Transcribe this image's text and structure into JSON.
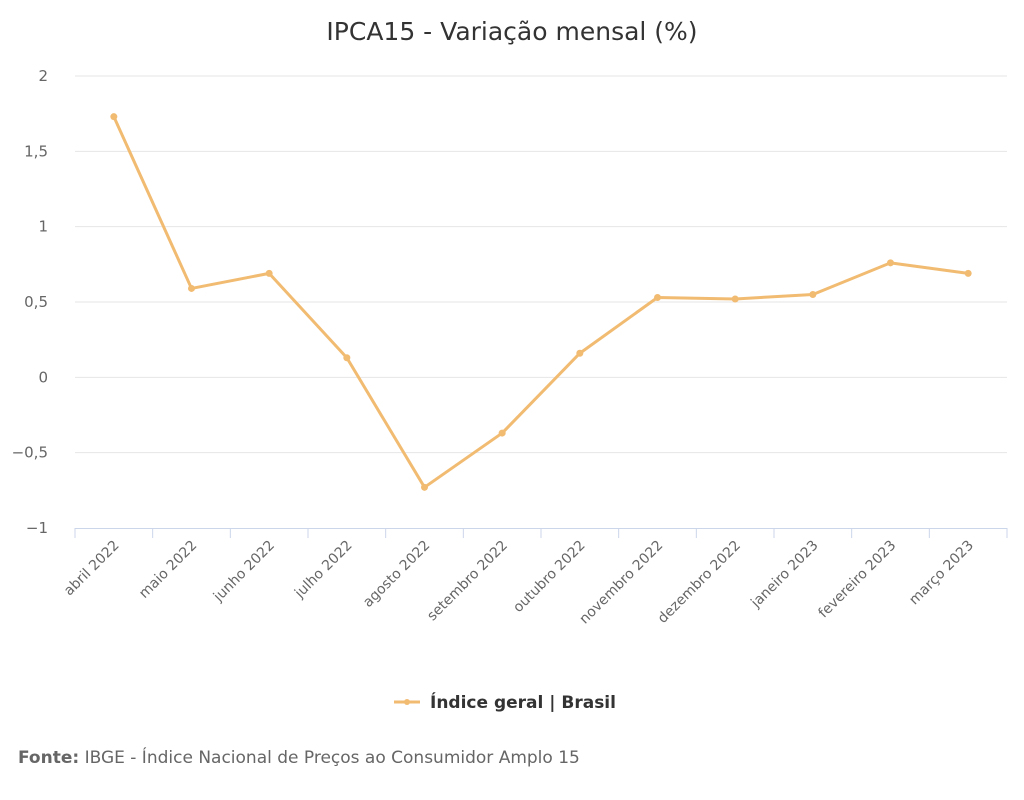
{
  "chart_data": {
    "type": "line",
    "title": "IPCA15 - Variação mensal (%)",
    "categories": [
      "abril 2022",
      "maio 2022",
      "junho 2022",
      "julho 2022",
      "agosto 2022",
      "setembro 2022",
      "outubro 2022",
      "novembro 2022",
      "dezembro 2022",
      "janeiro 2023",
      "fevereiro 2023",
      "março 2023"
    ],
    "series": [
      {
        "name": "Índice geral | Brasil",
        "color": "#f1bb72",
        "values": [
          1.73,
          0.59,
          0.69,
          0.13,
          -0.73,
          -0.37,
          0.16,
          0.53,
          0.52,
          0.55,
          0.76,
          0.69
        ]
      }
    ],
    "ylim": [
      -1,
      2
    ],
    "yticks": [
      -1,
      -0.5,
      0,
      0.5,
      1,
      1.5,
      2
    ],
    "ytick_labels": [
      "−1",
      "−0,5",
      "0",
      "0,5",
      "1",
      "1,5",
      "2"
    ],
    "grid": true,
    "legend": "bottom-center",
    "xlabel": "",
    "ylabel": ""
  },
  "source": {
    "label": "Fonte:",
    "text": " IBGE - Índice Nacional de Preços ao Consumidor Amplo 15"
  }
}
